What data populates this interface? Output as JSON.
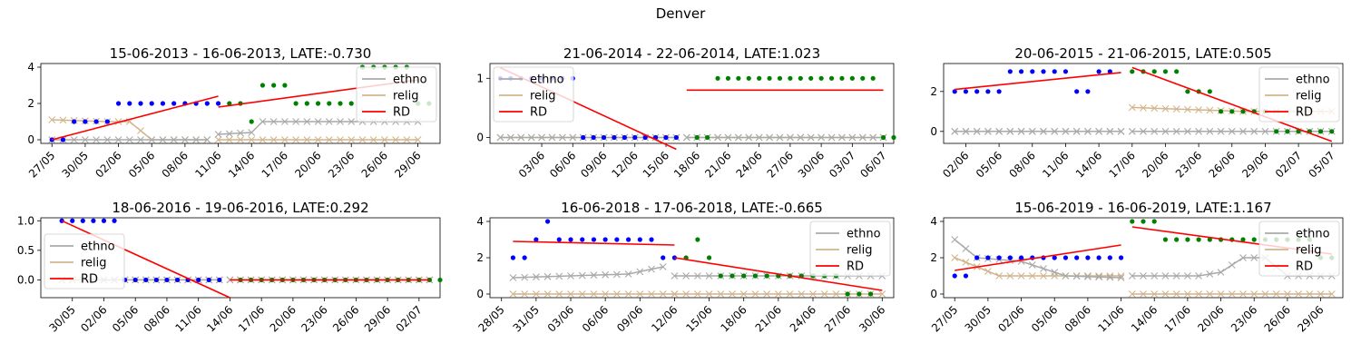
{
  "figure_title": "Denver",
  "legend_labels": [
    "ethno",
    "relig",
    "RD"
  ],
  "colors": {
    "ethno": "#a9a9a9",
    "relig": "#d2b48c",
    "rd": "#ff0000",
    "pre": "#0000ff",
    "post": "#008000"
  },
  "chart_data": [
    {
      "type": "scatter",
      "title": "15-06-2013 - 16-06-2013, LATE:-0.730",
      "cutoff": "2013-06-11",
      "xlim": [
        "2013-05-26",
        "2013-07-01"
      ],
      "ylim": [
        -0.2,
        4.2
      ],
      "yticks": [
        0,
        2,
        4
      ],
      "ytick_labels": [
        "0",
        "2",
        "4"
      ],
      "xticks": [
        "2013-05-27",
        "2013-05-30",
        "2013-06-02",
        "2013-06-05",
        "2013-06-08",
        "2013-06-11",
        "2013-06-14",
        "2013-06-17",
        "2013-06-20",
        "2013-06-23",
        "2013-06-26",
        "2013-06-29"
      ],
      "xtick_labels": [
        "27/05",
        "30/05",
        "02/06",
        "05/06",
        "08/06",
        "11/06",
        "14/06",
        "17/06",
        "20/06",
        "23/06",
        "26/06",
        "29/06"
      ],
      "start": "2013-05-27",
      "end": "2013-06-30",
      "pre_points": [
        0,
        0,
        1,
        1,
        1,
        1,
        2,
        2,
        2,
        2,
        2,
        2,
        2,
        2,
        2,
        2
      ],
      "post_points": [
        2,
        2,
        1,
        3,
        3,
        3,
        2,
        2,
        2,
        2,
        2,
        2,
        4,
        4,
        4,
        4,
        4,
        2,
        2
      ],
      "ethno_pre": [
        [
          0,
          0
        ],
        [
          14,
          0
        ]
      ],
      "ethno_post": [
        [
          15,
          0.3
        ],
        [
          18,
          0.4
        ],
        [
          19,
          1
        ],
        [
          33,
          1
        ]
      ],
      "relig_pre": [
        [
          0,
          1.1
        ],
        [
          5,
          1.0
        ],
        [
          7,
          1.0
        ],
        [
          9,
          0
        ],
        [
          14,
          0
        ]
      ],
      "relig_post": [
        [
          15,
          0
        ],
        [
          33,
          0
        ]
      ],
      "rd_pre": [
        [
          0,
          0
        ],
        [
          15,
          2.4
        ]
      ],
      "rd_post": [
        [
          15,
          1.8
        ],
        [
          33,
          3.3
        ]
      ],
      "legend_loc": "upper right"
    },
    {
      "type": "scatter",
      "title": "21-06-2014 - 22-06-2014, LATE:1.023",
      "cutoff": "2014-06-17",
      "xlim": [
        "2014-05-29",
        "2014-07-07"
      ],
      "ylim": [
        -0.1,
        1.25
      ],
      "yticks": [
        0,
        1
      ],
      "ytick_labels": [
        "0",
        "1"
      ],
      "xticks": [
        "2014-06-03",
        "2014-06-06",
        "2014-06-09",
        "2014-06-12",
        "2014-06-15",
        "2014-06-18",
        "2014-06-21",
        "2014-06-24",
        "2014-06-27",
        "2014-06-30",
        "2014-07-03",
        "2014-07-06"
      ],
      "xtick_labels": [
        "03/06",
        "06/06",
        "09/06",
        "12/06",
        "15/06",
        "18/06",
        "21/06",
        "24/06",
        "27/06",
        "30/06",
        "03/07",
        "06/07"
      ],
      "start": "2014-05-30",
      "end": "2014-07-06",
      "pre_points": [
        1,
        1,
        1,
        1,
        1,
        1,
        1,
        1,
        0,
        0,
        0,
        0,
        0,
        0,
        0,
        0,
        0,
        0
      ],
      "post_points": [
        0,
        0,
        1,
        1,
        1,
        1,
        1,
        1,
        1,
        1,
        1,
        1,
        1,
        1,
        1,
        1,
        1,
        1,
        0,
        0
      ],
      "ethno_pre": [
        [
          0,
          0
        ],
        [
          17,
          0
        ]
      ],
      "ethno_post": [
        [
          18,
          0
        ],
        [
          37,
          0
        ]
      ],
      "relig_pre": [
        [
          0,
          0
        ],
        [
          17,
          0
        ]
      ],
      "relig_post": [
        [
          18,
          0
        ],
        [
          37,
          0
        ]
      ],
      "rd_pre": [
        [
          0,
          1.18
        ],
        [
          17,
          -0.2
        ]
      ],
      "rd_post": [
        [
          18,
          0.8
        ],
        [
          37,
          0.8
        ]
      ],
      "legend_loc": "upper left"
    },
    {
      "type": "scatter",
      "title": "20-06-2015 - 21-06-2015, LATE:0.505",
      "cutoff": "2015-06-16",
      "xlim": [
        "2015-05-31",
        "2015-07-06"
      ],
      "ylim": [
        -0.6,
        3.4
      ],
      "yticks": [
        0,
        2
      ],
      "ytick_labels": [
        "0",
        "2"
      ],
      "xticks": [
        "2015-06-02",
        "2015-06-05",
        "2015-06-08",
        "2015-06-11",
        "2015-06-14",
        "2015-06-17",
        "2015-06-20",
        "2015-06-23",
        "2015-06-26",
        "2015-06-29",
        "2015-07-02",
        "2015-07-05"
      ],
      "xtick_labels": [
        "02/06",
        "05/06",
        "08/06",
        "11/06",
        "14/06",
        "17/06",
        "20/06",
        "23/06",
        "26/06",
        "29/06",
        "02/07",
        "05/07"
      ],
      "start": "2015-06-01",
      "end": "2015-07-05",
      "pre_points": [
        2,
        2,
        2,
        2,
        2,
        3,
        3,
        3,
        3,
        3,
        3,
        2,
        2,
        3,
        3
      ],
      "post_points": [
        3,
        3,
        3,
        3,
        3,
        2,
        2,
        2,
        1,
        1,
        1,
        1,
        1,
        0,
        0,
        0,
        0,
        0,
        0
      ],
      "ethno_pre": [
        [
          0,
          0
        ],
        [
          15,
          0
        ]
      ],
      "ethno_post": [
        [
          16,
          0
        ],
        [
          34,
          0
        ]
      ],
      "relig_pre": [
        [
          0,
          0
        ],
        [
          15,
          0
        ]
      ],
      "relig_post": [
        [
          16,
          1.2
        ],
        [
          26,
          1.0
        ],
        [
          34,
          1.0
        ]
      ],
      "rd_pre": [
        [
          0,
          2.1
        ],
        [
          15,
          2.95
        ]
      ],
      "rd_post": [
        [
          16,
          3.2
        ],
        [
          34,
          -0.5
        ]
      ],
      "legend_loc": "upper right"
    },
    {
      "type": "scatter",
      "title": "18-06-2016 - 19-06-2016, LATE:0.292",
      "cutoff": "2016-06-14",
      "xlim": [
        "2016-05-27",
        "2016-07-04"
      ],
      "ylim": [
        -0.3,
        1.05
      ],
      "yticks": [
        0,
        0.5,
        1
      ],
      "ytick_labels": [
        "0.0",
        "0.5",
        "1.0"
      ],
      "xticks": [
        "2016-05-30",
        "2016-06-02",
        "2016-06-05",
        "2016-06-08",
        "2016-06-11",
        "2016-06-14",
        "2016-06-17",
        "2016-06-20",
        "2016-06-23",
        "2016-06-26",
        "2016-06-29",
        "2016-07-02"
      ],
      "xtick_labels": [
        "30/05",
        "02/06",
        "05/06",
        "08/06",
        "11/06",
        "14/06",
        "17/06",
        "20/06",
        "23/06",
        "26/06",
        "29/06",
        "02/07"
      ],
      "start": "2016-05-29",
      "end": "2016-07-03",
      "pre_points": [
        1,
        1,
        1,
        1,
        1,
        1,
        0,
        0,
        0,
        0,
        0,
        0,
        0,
        0,
        0,
        0
      ],
      "post_points": [
        0,
        0,
        0,
        0,
        0,
        0,
        0,
        0,
        0,
        0,
        0,
        0,
        0,
        0,
        0,
        0,
        0,
        0,
        0,
        0
      ],
      "ethno_pre": [
        [
          0,
          0
        ],
        [
          15,
          0
        ]
      ],
      "ethno_post": [
        [
          16,
          0
        ],
        [
          35,
          0
        ]
      ],
      "relig_pre": [
        [
          0,
          0
        ],
        [
          15,
          0
        ]
      ],
      "relig_post": [
        [
          16,
          0
        ],
        [
          35,
          0
        ]
      ],
      "rd_pre": [
        [
          0,
          1.0
        ],
        [
          16,
          -0.3
        ]
      ],
      "rd_post": [
        [
          16,
          0
        ],
        [
          35,
          0
        ]
      ],
      "legend_loc": "center left"
    },
    {
      "type": "scatter",
      "title": "16-06-2018 - 17-06-2018, LATE:-0.665",
      "cutoff": "2018-06-12",
      "xlim": [
        "2018-05-27",
        "2018-07-01"
      ],
      "ylim": [
        -0.2,
        4.2
      ],
      "yticks": [
        0,
        2,
        4
      ],
      "ytick_labels": [
        "0",
        "2",
        "4"
      ],
      "xticks": [
        "2018-05-28",
        "2018-05-31",
        "2018-06-03",
        "2018-06-06",
        "2018-06-09",
        "2018-06-12",
        "2018-06-15",
        "2018-06-18",
        "2018-06-21",
        "2018-06-24",
        "2018-06-27",
        "2018-06-30"
      ],
      "xtick_labels": [
        "28/05",
        "31/05",
        "03/06",
        "06/06",
        "09/06",
        "12/06",
        "15/06",
        "18/06",
        "21/06",
        "24/06",
        "27/06",
        "30/06"
      ],
      "start": "2018-05-29",
      "end": "2018-06-30",
      "pre_points": [
        2,
        2,
        3,
        4,
        3,
        3,
        3,
        3,
        3,
        3,
        3,
        3,
        3,
        2,
        2
      ],
      "post_points": [
        2,
        3,
        2,
        1,
        1,
        1,
        1,
        1,
        1,
        1,
        1,
        1,
        1,
        1,
        0,
        0,
        0
      ],
      "ethno_pre": [
        [
          0,
          0.9
        ],
        [
          10,
          1.1
        ],
        [
          13,
          1.5
        ]
      ],
      "ethno_post": [
        [
          14,
          1.0
        ],
        [
          17,
          1.0
        ],
        [
          19,
          1.0
        ],
        [
          32,
          1.0
        ]
      ],
      "relig_pre": [
        [
          0,
          0
        ],
        [
          14,
          0
        ]
      ],
      "relig_post": [
        [
          14,
          0
        ],
        [
          32,
          0
        ]
      ],
      "rd_pre": [
        [
          0,
          2.9
        ],
        [
          14,
          2.7
        ]
      ],
      "rd_post": [
        [
          14,
          2.0
        ],
        [
          32,
          0.2
        ]
      ],
      "legend_loc": "upper right"
    },
    {
      "type": "scatter",
      "title": "15-06-2019 - 16-06-2019, LATE:1.167",
      "cutoff": "2019-06-11",
      "xlim": [
        "2019-05-26",
        "2019-07-01"
      ],
      "ylim": [
        -0.2,
        4.2
      ],
      "yticks": [
        0,
        2,
        4
      ],
      "ytick_labels": [
        "0",
        "2",
        "4"
      ],
      "xticks": [
        "2019-05-27",
        "2019-05-30",
        "2019-06-02",
        "2019-06-05",
        "2019-06-08",
        "2019-06-11",
        "2019-06-14",
        "2019-06-17",
        "2019-06-20",
        "2019-06-23",
        "2019-06-26",
        "2019-06-29"
      ],
      "xtick_labels": [
        "27/05",
        "30/05",
        "02/06",
        "05/06",
        "08/06",
        "11/06",
        "14/06",
        "17/06",
        "20/06",
        "23/06",
        "26/06",
        "29/06"
      ],
      "start": "2019-05-27",
      "end": "2019-06-30",
      "pre_points": [
        1,
        1,
        2,
        2,
        2,
        2,
        2,
        2,
        2,
        2,
        2,
        2,
        2,
        2,
        2,
        2
      ],
      "post_points": [
        4,
        4,
        4,
        3,
        3,
        3,
        3,
        3,
        3,
        3,
        3,
        3,
        3,
        3,
        3,
        3,
        3,
        2,
        2
      ],
      "ethno_pre": [
        [
          0,
          3.0
        ],
        [
          2,
          2.0
        ],
        [
          6,
          1.8
        ],
        [
          10,
          1.0
        ],
        [
          15,
          0.9
        ]
      ],
      "ethno_post": [
        [
          16,
          1.0
        ],
        [
          22,
          1.0
        ],
        [
          24,
          1.2
        ],
        [
          26,
          2.0
        ],
        [
          28,
          2.0
        ],
        [
          30,
          1.0
        ],
        [
          34,
          1.0
        ]
      ],
      "relig_pre": [
        [
          0,
          2.0
        ],
        [
          4,
          1.0
        ],
        [
          15,
          1.0
        ]
      ],
      "relig_post": [
        [
          16,
          0
        ],
        [
          34,
          0
        ]
      ],
      "rd_pre": [
        [
          0,
          1.3
        ],
        [
          15,
          2.7
        ]
      ],
      "rd_post": [
        [
          16,
          3.7
        ],
        [
          34,
          2.2
        ]
      ],
      "legend_loc": "upper right"
    }
  ]
}
